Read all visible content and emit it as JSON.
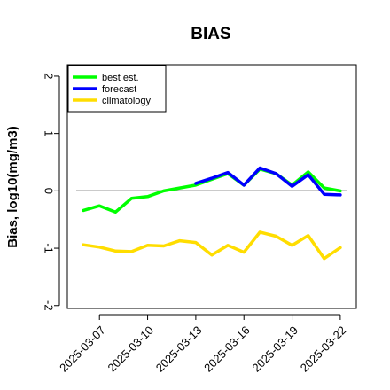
{
  "chart_data": {
    "type": "line",
    "title": "BIAS",
    "ylabel": "Bias, log10(mg/m3)",
    "xlabel": "",
    "ylim": [
      -2.05,
      2.2
    ],
    "yticks": [
      -2,
      -1,
      0,
      1,
      2
    ],
    "xlim": [
      "2025-03-05",
      "2025-03-23"
    ],
    "xticks": [
      "2025-03-07",
      "2025-03-10",
      "2025-03-13",
      "2025-03-16",
      "2025-03-19",
      "2025-03-22"
    ],
    "highlight_tick": "2025-03-13",
    "highlight_color": "#228B22",
    "reference_line": 0,
    "grid": false,
    "legend_position": "top-left",
    "series": [
      {
        "name": "best est.",
        "color": "#00ff00",
        "x": [
          "2025-03-06",
          "2025-03-07",
          "2025-03-08",
          "2025-03-09",
          "2025-03-10",
          "2025-03-11",
          "2025-03-12",
          "2025-03-13",
          "2025-03-14",
          "2025-03-15",
          "2025-03-16",
          "2025-03-17",
          "2025-03-18",
          "2025-03-19",
          "2025-03-20",
          "2025-03-21",
          "2025-03-22"
        ],
        "values": [
          -0.34,
          -0.26,
          -0.37,
          -0.13,
          -0.1,
          0.0,
          0.05,
          0.1,
          0.2,
          0.3,
          0.1,
          0.38,
          0.3,
          0.1,
          0.33,
          0.05,
          0.0
        ]
      },
      {
        "name": "forecast",
        "color": "#0000ff",
        "x": [
          "2025-03-13",
          "2025-03-14",
          "2025-03-15",
          "2025-03-16",
          "2025-03-17",
          "2025-03-18",
          "2025-03-19",
          "2025-03-20",
          "2025-03-21",
          "2025-03-22"
        ],
        "values": [
          0.13,
          0.22,
          0.32,
          0.1,
          0.4,
          0.3,
          0.08,
          0.28,
          -0.06,
          -0.07
        ]
      },
      {
        "name": "climatology",
        "color": "#ffdd00",
        "x": [
          "2025-03-06",
          "2025-03-07",
          "2025-03-08",
          "2025-03-09",
          "2025-03-10",
          "2025-03-11",
          "2025-03-12",
          "2025-03-13",
          "2025-03-14",
          "2025-03-15",
          "2025-03-16",
          "2025-03-17",
          "2025-03-18",
          "2025-03-19",
          "2025-03-20",
          "2025-03-21",
          "2025-03-22"
        ],
        "values": [
          -0.94,
          -0.98,
          -1.05,
          -1.06,
          -0.95,
          -0.96,
          -0.87,
          -0.9,
          -1.12,
          -0.95,
          -1.07,
          -0.72,
          -0.79,
          -0.95,
          -0.78,
          -1.18,
          -0.99
        ]
      }
    ]
  }
}
